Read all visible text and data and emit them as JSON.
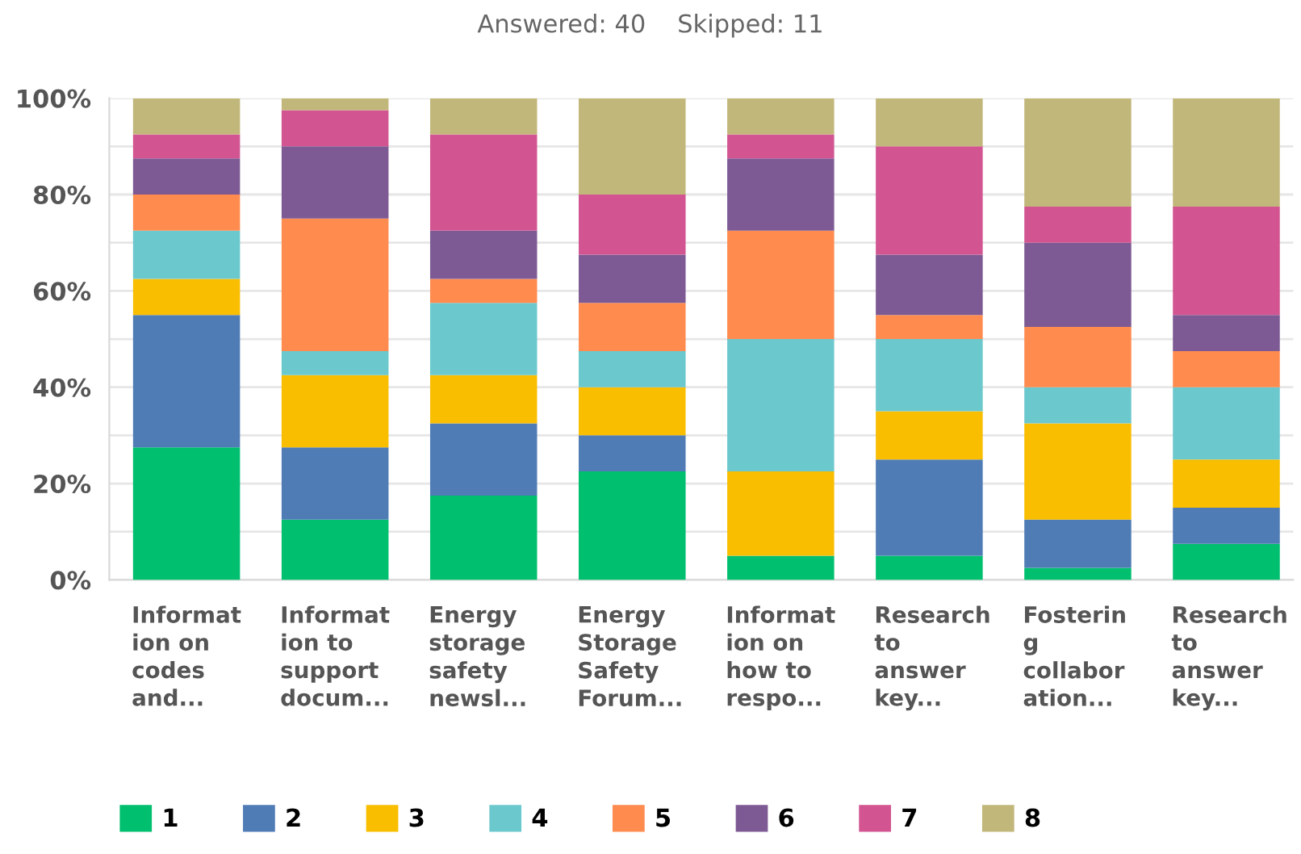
{
  "chart_data": {
    "type": "bar",
    "stacked": true,
    "title": "Answered: 40    Skipped: 11",
    "categories": [
      "Informat\nion on\ncodes\nand...",
      "Informat\nion to\nsupport\ndocum...",
      "Energy\nstorage\nsafety\nnewsl...",
      "Energy\nStorage\nSafety\nForum...",
      "Informat\nion on\nhow to\nrespo...",
      "Research\nto\nanswer\nkey...",
      "Fosterin\ng\ncollabor\nation...",
      "Research\nto\nanswer\nkey..."
    ],
    "series": [
      {
        "name": "1",
        "color": "#00bf6f",
        "values": [
          27.5,
          12.5,
          17.5,
          22.5,
          5,
          5,
          2.5,
          7.5
        ]
      },
      {
        "name": "2",
        "color": "#507cb6",
        "values": [
          27.5,
          15,
          15,
          7.5,
          0,
          20,
          10,
          7.5
        ]
      },
      {
        "name": "3",
        "color": "#f9be00",
        "values": [
          7.5,
          15,
          10,
          10,
          17.5,
          10,
          20,
          10
        ]
      },
      {
        "name": "4",
        "color": "#6bc8cd",
        "values": [
          10,
          5,
          15,
          7.5,
          27.5,
          15,
          7.5,
          15
        ]
      },
      {
        "name": "5",
        "color": "#ff8b4f",
        "values": [
          7.5,
          27.5,
          5,
          10,
          22.5,
          5,
          12.5,
          7.5
        ]
      },
      {
        "name": "6",
        "color": "#7d5a94",
        "values": [
          7.5,
          15,
          10,
          10,
          15,
          12.5,
          17.5,
          7.5
        ]
      },
      {
        "name": "7",
        "color": "#d25592",
        "values": [
          5,
          7.5,
          20,
          12.5,
          5,
          22.5,
          7.5,
          22.5
        ]
      },
      {
        "name": "8",
        "color": "#c2b77a",
        "values": [
          7.5,
          2.5,
          7.5,
          20,
          7.5,
          10,
          22.5,
          22.5
        ]
      }
    ],
    "ylim": [
      0,
      100
    ],
    "yticks": [
      {
        "value": 0,
        "label": "0%"
      },
      {
        "value": 10,
        "label": null
      },
      {
        "value": 20,
        "label": "20%"
      },
      {
        "value": 30,
        "label": null
      },
      {
        "value": 40,
        "label": "40%"
      },
      {
        "value": 50,
        "label": null
      },
      {
        "value": 60,
        "label": "60%"
      },
      {
        "value": 70,
        "label": null
      },
      {
        "value": 80,
        "label": "80%"
      },
      {
        "value": 90,
        "label": null
      },
      {
        "value": 100,
        "label": "100%"
      }
    ],
    "grid": "y",
    "legend": "bottom"
  }
}
